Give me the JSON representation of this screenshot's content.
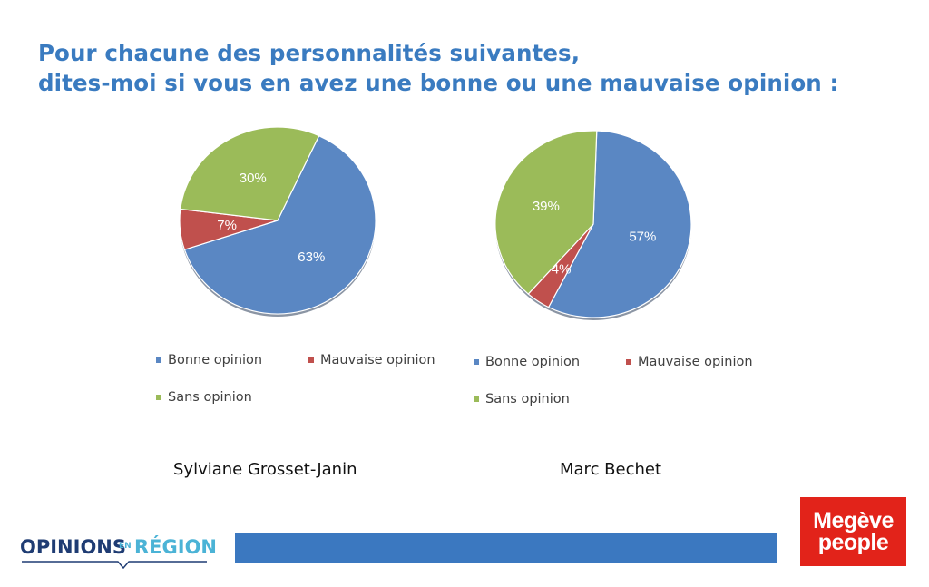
{
  "title": {
    "line1": "Pour chacune des personnalités suivantes,",
    "line2": "dites-moi si vous en avez une bonne ou une mauvaise opinion :"
  },
  "colors": {
    "title": "#3a7bc0",
    "bonne": "#5a87c3",
    "mauvaise": "#c0504d",
    "sans": "#9bbb59",
    "bar": "#3b78c0",
    "brand_red": "#e2231a",
    "logo_navy": "#1f3c73",
    "logo_teal": "#4bb3d6"
  },
  "chart_data": [
    {
      "type": "pie",
      "categories": [
        "Bonne opinion",
        "Mauvaise opinion",
        "Sans opinion"
      ],
      "values": [
        63,
        7,
        30
      ],
      "labels": [
        "63%",
        "7%",
        "30%"
      ],
      "caption": "Sylviane Grosset-Janin",
      "legend": "bottom"
    },
    {
      "type": "pie",
      "categories": [
        "Bonne opinion",
        "Mauvaise opinion",
        "Sans opinion"
      ],
      "values": [
        57,
        4,
        39
      ],
      "labels": [
        "57%",
        "4%",
        "39%"
      ],
      "caption": "Marc Bechet",
      "legend": "bottom"
    }
  ],
  "logos": {
    "left": {
      "part1": "OPINIONS",
      "part2": "EN",
      "part3": "RÉGION"
    },
    "right": {
      "line1": "Megève",
      "line2": "people"
    }
  }
}
